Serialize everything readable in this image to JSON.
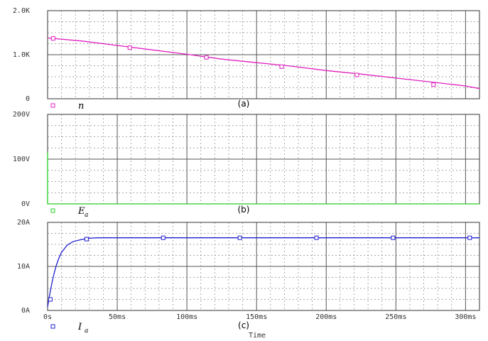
{
  "figure": {
    "x_axis_label": "Time",
    "x_tick_labels": [
      "0s",
      "50ms",
      "100ms",
      "150ms",
      "200ms",
      "250ms",
      "300ms"
    ]
  },
  "chart_data": [
    {
      "type": "line",
      "panel_label": "(a)",
      "legend": {
        "symbol": "n",
        "subscript": "",
        "color": "#e020c0"
      },
      "y_tick_labels": [
        "2.0K",
        "1.0K",
        "0"
      ],
      "ylim": [
        0,
        2000
      ],
      "xlim": [
        0,
        310
      ],
      "x_units": "ms",
      "grid": true,
      "series": [
        {
          "color": "#e020c0",
          "marker": "square",
          "x": [
            0,
            25,
            50,
            75,
            100,
            125,
            150,
            175,
            200,
            225,
            250,
            275,
            300,
            310
          ],
          "y": [
            1380,
            1310,
            1210,
            1110,
            1010,
            900,
            820,
            740,
            640,
            560,
            470,
            380,
            290,
            230
          ],
          "marker_x": [
            4,
            59,
            114,
            168,
            222,
            277
          ],
          "marker_y": [
            1370,
            1160,
            940,
            730,
            540,
            320
          ]
        }
      ]
    },
    {
      "type": "line",
      "panel_label": "(b)",
      "legend": {
        "symbol": "E",
        "subscript": "a",
        "color": "#20d020"
      },
      "y_tick_labels": [
        "200V",
        "100V",
        "0V"
      ],
      "ylim": [
        0,
        200
      ],
      "xlim": [
        0,
        310
      ],
      "x_units": "ms",
      "grid": true,
      "series": [
        {
          "color": "#20d020",
          "marker": "square",
          "x": [
            0,
            0,
            0,
            310
          ],
          "y": [
            115,
            0,
            0,
            0
          ]
        }
      ]
    },
    {
      "type": "line",
      "panel_label": "(c)",
      "legend": {
        "symbol": "I",
        "subscript": "a",
        "color": "#2020d0"
      },
      "y_tick_labels": [
        "20A",
        "10A",
        "0A"
      ],
      "ylim": [
        0,
        20
      ],
      "xlim": [
        0,
        310
      ],
      "x_units": "ms",
      "grid": true,
      "series": [
        {
          "color": "#2020d0",
          "marker": "square",
          "x": [
            0,
            2,
            4,
            6,
            8,
            10,
            14,
            18,
            24,
            30,
            36,
            50,
            100,
            150,
            200,
            250,
            310
          ],
          "y": [
            0.8,
            4.5,
            7.5,
            10.0,
            11.8,
            13.2,
            14.8,
            15.6,
            16.1,
            16.4,
            16.5,
            16.5,
            16.5,
            16.5,
            16.5,
            16.5,
            16.5
          ],
          "marker_x": [
            2,
            28,
            83,
            138,
            193,
            248,
            303
          ],
          "marker_y": [
            2.5,
            16.2,
            16.5,
            16.5,
            16.5,
            16.5,
            16.5
          ]
        }
      ]
    }
  ]
}
